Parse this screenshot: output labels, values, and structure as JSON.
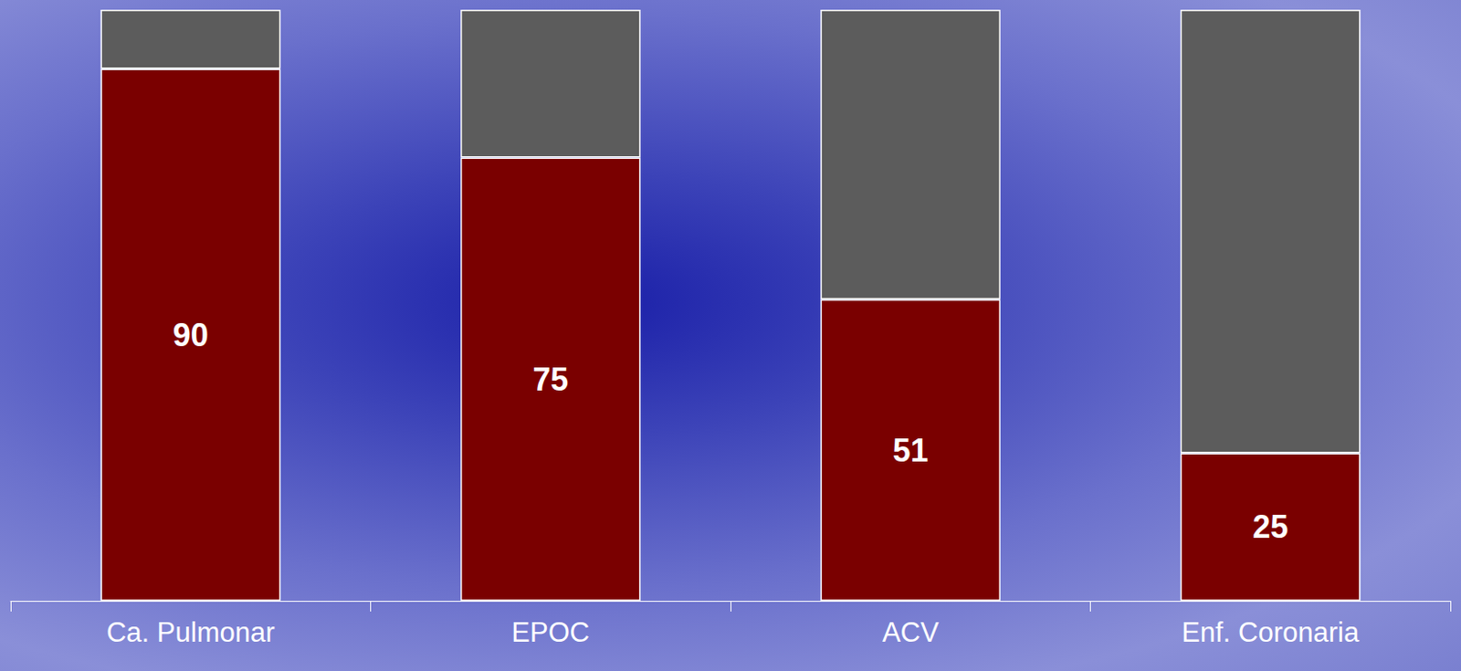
{
  "chart_data": {
    "type": "bar",
    "categories": [
      "Ca. Pulmonar",
      "EPOC",
      "ACV",
      "Enf. Coronaria"
    ],
    "series": [
      {
        "color": "#7a0000",
        "values": [
          90,
          75,
          51,
          25
        ],
        "data_labels": true
      },
      {
        "color": "#5c5c5c",
        "values": [
          10,
          25,
          49,
          75
        ]
      }
    ],
    "stacked": true,
    "ylim": [
      0,
      100
    ],
    "grid": false,
    "tick_labels": "x"
  }
}
